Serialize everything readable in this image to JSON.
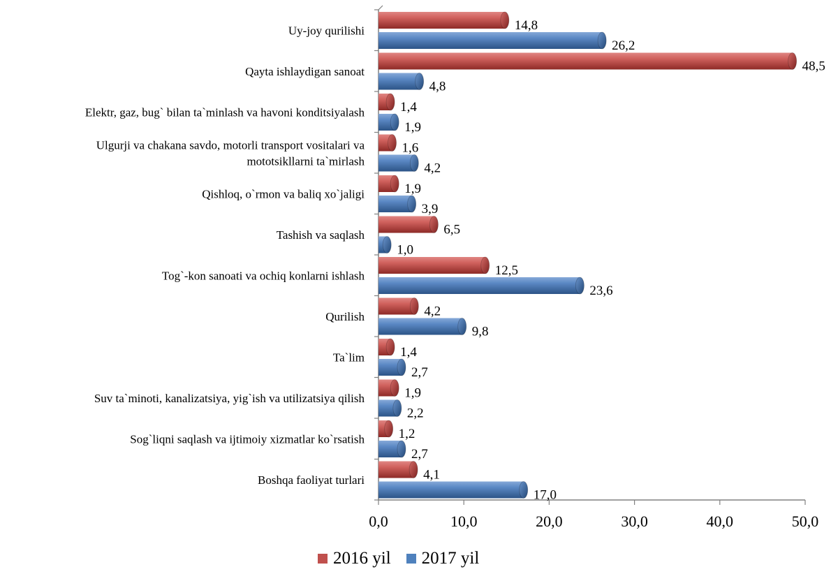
{
  "chart_data": {
    "type": "bar",
    "orientation": "horizontal",
    "categories": [
      [
        "Uy-joy qurilishi"
      ],
      [
        "Qayta ishlaydigan sanoat"
      ],
      [
        "Elektr, gaz, bug` bilan ta`minlash va havoni konditsiyalash"
      ],
      [
        "Ulgurji va chakana savdo, motorli transport vositalari va",
        "mototsikllarni ta`mirlash"
      ],
      [
        "Qishloq, o`rmon va baliq xo`jaligi"
      ],
      [
        "Tashish va saqlash"
      ],
      [
        "Tog`-kon sanoati va ochiq konlarni ishlash"
      ],
      [
        "Qurilish"
      ],
      [
        "Ta`lim"
      ],
      [
        "Suv ta`minoti, kanalizatsiya, yig`ish va utilizatsiya qilish"
      ],
      [
        "Sog`liqni saqlash va ijtimoiy xizmatlar ko`rsatish"
      ],
      [
        "Boshqa faoliyat turlari"
      ]
    ],
    "series": [
      {
        "name": "2016 yil",
        "color": "#c0504d",
        "values": [
          14.8,
          48.5,
          1.4,
          1.6,
          1.9,
          6.5,
          12.5,
          4.2,
          1.4,
          1.9,
          1.2,
          4.1
        ],
        "labels": [
          "14,8",
          "48,5",
          "1,4",
          "1,6",
          "1,9",
          "6,5",
          "12,5",
          "4,2",
          "1,4",
          "1,9",
          "1,2",
          "4,1"
        ]
      },
      {
        "name": "2017 yil",
        "color": "#4f81bd",
        "values": [
          26.2,
          4.8,
          1.9,
          4.2,
          3.9,
          1.0,
          23.6,
          9.8,
          2.7,
          2.2,
          2.7,
          17.0
        ],
        "labels": [
          "26,2",
          "4,8",
          "1,9",
          "4,2",
          "3,9",
          "1,0",
          "23,6",
          "9,8",
          "2,7",
          "2,2",
          "2,7",
          "17,0"
        ]
      }
    ],
    "xlim": [
      0,
      50
    ],
    "ticks": [
      0,
      10,
      20,
      30,
      40,
      50
    ],
    "tick_labels": [
      "0,0",
      "10,0",
      "20,0",
      "30,0",
      "40,0",
      "50,0"
    ],
    "grid": false,
    "legend_position": "bottom"
  }
}
